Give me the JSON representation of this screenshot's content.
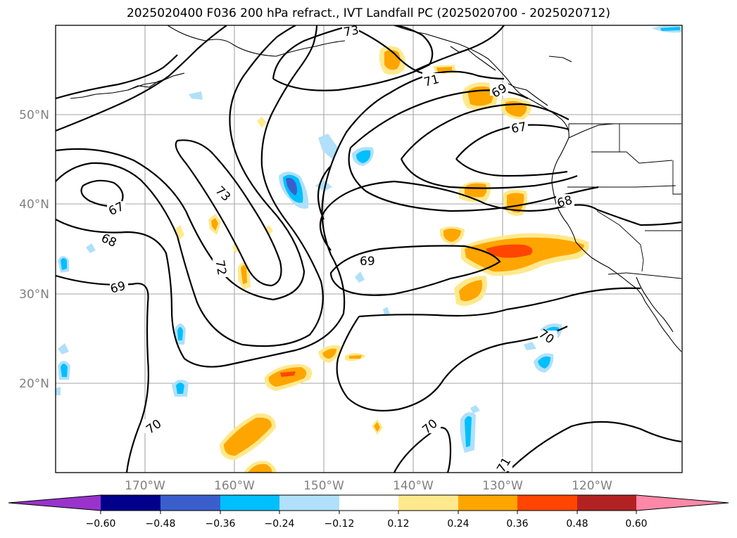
{
  "title": "2025020400 F036 200 hPa refract., IVT Landfall PC (2025020700 - 2025020712)",
  "map": {
    "lat_labels": [
      "50°N",
      "40°N",
      "30°N",
      "20°N"
    ],
    "lon_labels": [
      "170°W",
      "160°W",
      "150°W",
      "140°W",
      "130°W",
      "120°W"
    ],
    "contour_labels": [
      "73",
      "71",
      "69",
      "67",
      "73",
      "67",
      "68",
      "69",
      "72",
      "68",
      "69",
      "70",
      "70",
      "70",
      "71"
    ]
  },
  "colorbar": {
    "ticks": [
      "−0.60",
      "−0.48",
      "−0.36",
      "−0.24",
      "−0.12",
      "0.12",
      "0.24",
      "0.36",
      "0.48",
      "0.60"
    ],
    "colors": [
      "#9933cc",
      "#00008b",
      "#3a5fcd",
      "#00bfff",
      "#b0e0fa",
      "#ffffff",
      "#ffe98c",
      "#ffa500",
      "#ff4500",
      "#b22222",
      "#ff88a8"
    ]
  }
}
